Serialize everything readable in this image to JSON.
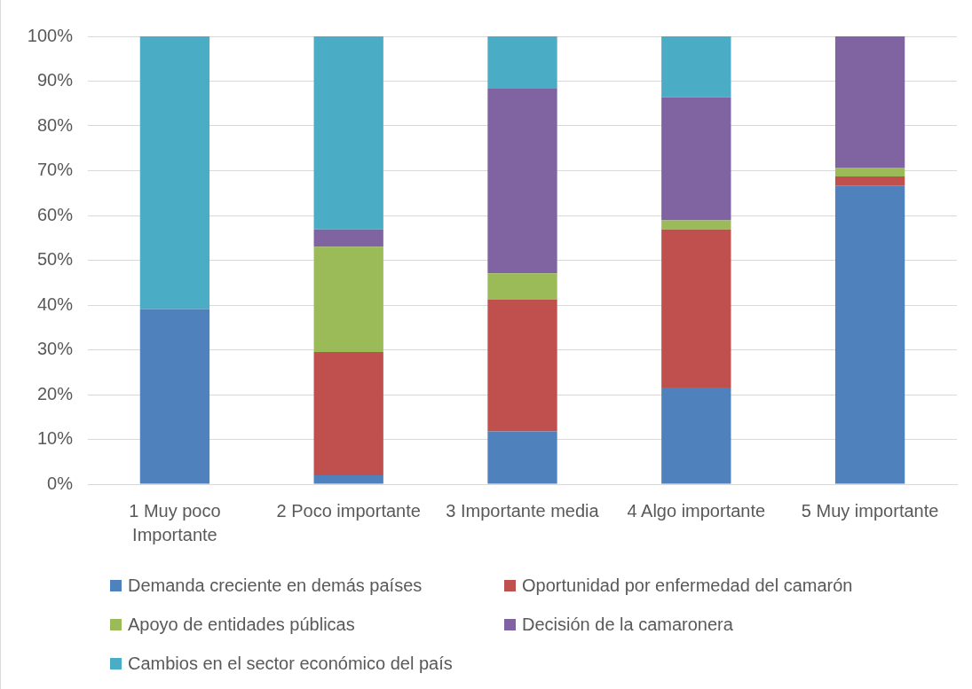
{
  "chart_data": {
    "type": "bar",
    "stacked": true,
    "categories": [
      "1 Muy poco Importante",
      "2 Poco importante",
      "3 Importante media",
      "4 Algo importante",
      "5 Muy importante"
    ],
    "series": [
      {
        "name": "Demanda creciente en demás países",
        "color": "#4f81bd",
        "values": [
          39.1,
          2.0,
          11.8,
          21.6,
          66.7
        ]
      },
      {
        "name": "Oportunidad por enfermedad del camarón",
        "color": "#c0504d",
        "values": [
          0,
          27.5,
          29.4,
          35.3,
          2.0
        ]
      },
      {
        "name": "Apoyo de entidades públicas",
        "color": "#9bbb59",
        "values": [
          0,
          23.5,
          5.9,
          2.0,
          2.0
        ]
      },
      {
        "name": "Decisión de la camaronera",
        "color": "#8064a2",
        "values": [
          0,
          3.9,
          41.2,
          27.5,
          29.3
        ]
      },
      {
        "name": "Cambios en el sector económico del país",
        "color": "#4bacc6",
        "values": [
          60.9,
          43.1,
          11.7,
          13.6,
          0
        ]
      }
    ],
    "ylim": [
      0,
      100
    ],
    "yticks": [
      {
        "value": 0,
        "label": "0%"
      },
      {
        "value": 10,
        "label": "10%"
      },
      {
        "value": 20,
        "label": "20%"
      },
      {
        "value": 30,
        "label": "30%"
      },
      {
        "value": 40,
        "label": "40%"
      },
      {
        "value": 50,
        "label": "50%"
      },
      {
        "value": 60,
        "label": "60%"
      },
      {
        "value": 70,
        "label": "70%"
      },
      {
        "value": 80,
        "label": "80%"
      },
      {
        "value": 90,
        "label": "90%"
      },
      {
        "value": 100,
        "label": "100%"
      }
    ],
    "grid": "y",
    "legend": "bottom"
  }
}
